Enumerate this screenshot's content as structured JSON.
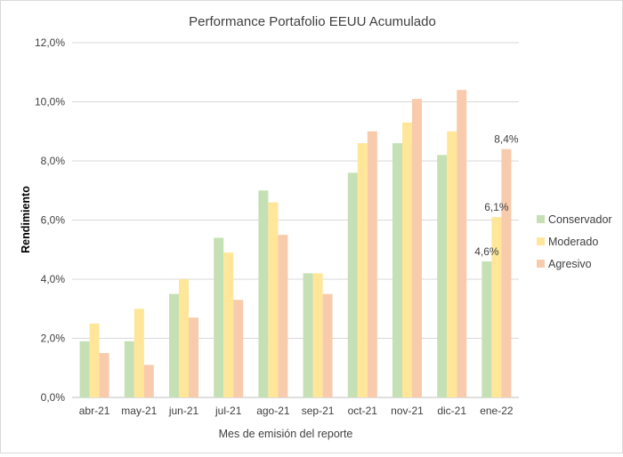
{
  "chart_data": {
    "type": "bar",
    "title": "Performance Portafolio EEUU Acumulado",
    "xlabel": "Mes de emisión del reporte",
    "ylabel": "Rendimiento",
    "categories": [
      "abr-21",
      "may-21",
      "jun-21",
      "jul-21",
      "ago-21",
      "sep-21",
      "oct-21",
      "nov-21",
      "dic-21",
      "ene-22"
    ],
    "ylim": [
      0,
      12
    ],
    "yticks": [
      "0,0%",
      "2,0%",
      "4,0%",
      "6,0%",
      "8,0%",
      "10,0%",
      "12,0%"
    ],
    "grid": true,
    "legend_position": "right",
    "series": [
      {
        "name": "Conservador",
        "color": "#c5e0b4",
        "values": [
          1.9,
          1.9,
          3.5,
          5.4,
          7.0,
          4.2,
          7.6,
          8.6,
          8.2,
          4.6
        ]
      },
      {
        "name": "Moderado",
        "color": "#ffe699",
        "values": [
          2.5,
          3.0,
          4.0,
          4.9,
          6.6,
          4.2,
          8.6,
          9.3,
          9.0,
          6.1
        ]
      },
      {
        "name": "Agresivo",
        "color": "#f8cbad",
        "values": [
          1.5,
          1.1,
          2.7,
          3.3,
          5.5,
          3.5,
          9.0,
          10.1,
          10.4,
          8.4
        ]
      }
    ],
    "data_labels": [
      {
        "series": 0,
        "category": 9,
        "text": "4,6%"
      },
      {
        "series": 1,
        "category": 9,
        "text": "6,1%"
      },
      {
        "series": 2,
        "category": 9,
        "text": "8,4%"
      }
    ]
  }
}
